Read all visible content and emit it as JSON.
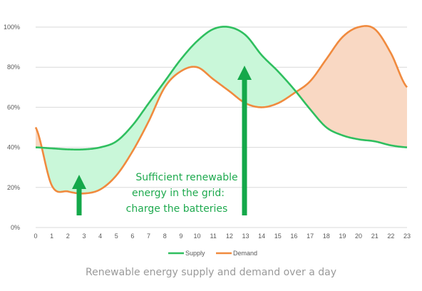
{
  "chart_data": {
    "type": "line",
    "x": [
      0,
      1,
      2,
      3,
      4,
      5,
      6,
      7,
      8,
      9,
      10,
      11,
      12,
      13,
      14,
      15,
      16,
      17,
      18,
      19,
      20,
      21,
      22,
      23
    ],
    "ylim": [
      0,
      100
    ],
    "yticks": [
      "0%",
      "20%",
      "40%",
      "60%",
      "80%",
      "100%"
    ],
    "ytick_values": [
      0,
      20,
      40,
      60,
      80,
      100
    ],
    "series": [
      {
        "name": "Supply",
        "color": "#2fbf5f",
        "values": [
          40,
          39.5,
          39,
          39,
          40,
          43,
          51,
          62,
          73,
          84,
          93,
          99,
          100,
          96,
          86,
          78,
          69,
          59,
          50,
          46,
          44,
          43,
          41,
          40
        ]
      },
      {
        "name": "Demand",
        "color": "#f08a3e",
        "values": [
          50,
          21,
          18,
          17,
          19,
          26,
          38,
          53,
          70,
          78,
          80,
          74,
          68,
          62,
          60,
          62,
          67,
          73,
          84,
          95,
          100,
          99,
          87,
          70
        ]
      }
    ],
    "fill_surplus_color": "#c9f7d9",
    "fill_deficit_color": "#f9d8c3",
    "annotations": {
      "text_lines": [
        "Sufficient renewable",
        "energy in the grid:",
        "charge the batteries"
      ],
      "arrow_color": "#14a84a"
    },
    "legend_position": "bottom"
  },
  "caption": "Renewable energy supply and demand over a day"
}
